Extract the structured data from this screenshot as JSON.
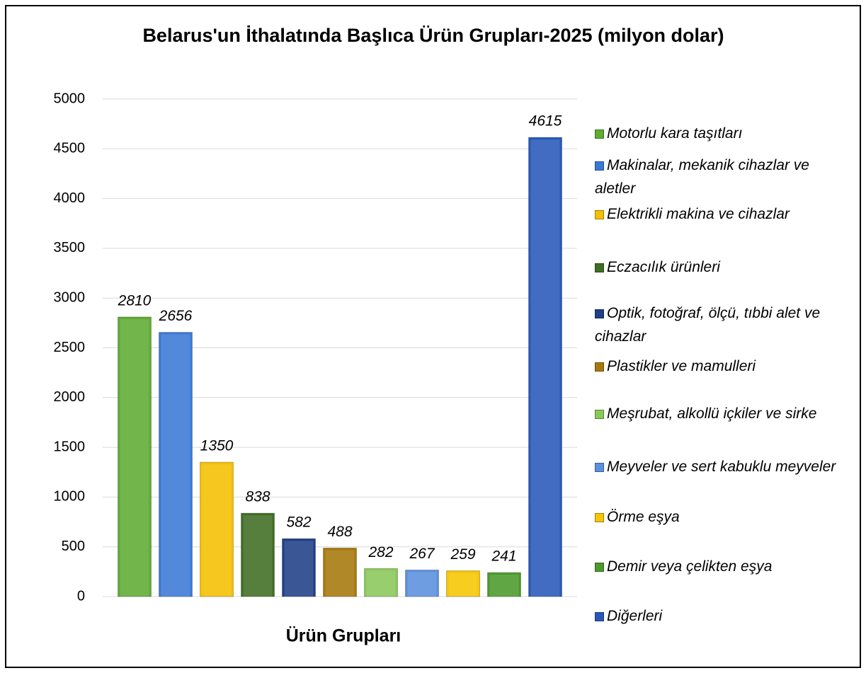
{
  "chart_data": {
    "type": "bar",
    "title": "Belarus'un İthalatında Başlıca Ürün Grupları-2025 (milyon dolar)",
    "x_label": "Ürün Grupları",
    "categories": [
      "Motorlu kara taşıtları",
      "Makinalar, mekanik cihazlar ve aletler",
      "Elektrikli makina ve cihazlar",
      "Eczacılık ürünleri",
      "Optik, fotoğraf, ölçü, tıbbi alet ve cihazlar",
      "Plastikler ve mamulleri",
      "Meşrubat, alkollü içkiler ve sirke",
      "Meyveler ve sert kabuklu meyveler",
      "Örme eşya",
      "Demir veya çelikten eşya",
      "Diğerleri"
    ],
    "values": [
      2810,
      2656,
      1350,
      838,
      582,
      488,
      282,
      267,
      259,
      241,
      4615
    ],
    "colors": [
      "#5fab33",
      "#3b79d6",
      "#f4c000",
      "#3f6d23",
      "#1f3f87",
      "#a7780b",
      "#8ac85a",
      "#5b90de",
      "#f6c600",
      "#4c9a2b",
      "#2758b9"
    ],
    "ylim": [
      0,
      5000
    ],
    "yticks": [
      0,
      500,
      1000,
      1500,
      2000,
      2500,
      3000,
      3500,
      4000,
      4500,
      5000
    ],
    "grid": true,
    "legend": "right"
  }
}
